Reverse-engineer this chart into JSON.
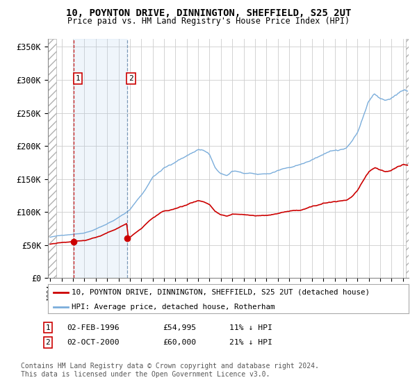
{
  "title": "10, POYNTON DRIVE, DINNINGTON, SHEFFIELD, S25 2UT",
  "subtitle": "Price paid vs. HM Land Registry's House Price Index (HPI)",
  "ylim": [
    0,
    360000
  ],
  "yticks": [
    0,
    50000,
    100000,
    150000,
    200000,
    250000,
    300000,
    350000
  ],
  "ytick_labels": [
    "£0",
    "£50K",
    "£100K",
    "£150K",
    "£200K",
    "£250K",
    "£300K",
    "£350K"
  ],
  "xlim_start": 1993.8,
  "xlim_end": 2025.5,
  "hpi_color": "#7aaddb",
  "price_color": "#cc0000",
  "sale1_year": 1996.085,
  "sale1_price": 54995,
  "sale2_year": 2000.75,
  "sale2_price": 60000,
  "sale1_label": "1",
  "sale2_label": "2",
  "legend_price_label": "10, POYNTON DRIVE, DINNINGTON, SHEFFIELD, S25 2UT (detached house)",
  "legend_hpi_label": "HPI: Average price, detached house, Rotherham",
  "footnote": "Contains HM Land Registry data © Crown copyright and database right 2024.\nThis data is licensed under the Open Government Licence v3.0.",
  "background_color": "#ffffff",
  "grid_color": "#cccccc",
  "hpi_base_1994": 62000,
  "price_base_1994": 55000,
  "sale1_discount": 0.89,
  "sale2_discount": 0.79
}
